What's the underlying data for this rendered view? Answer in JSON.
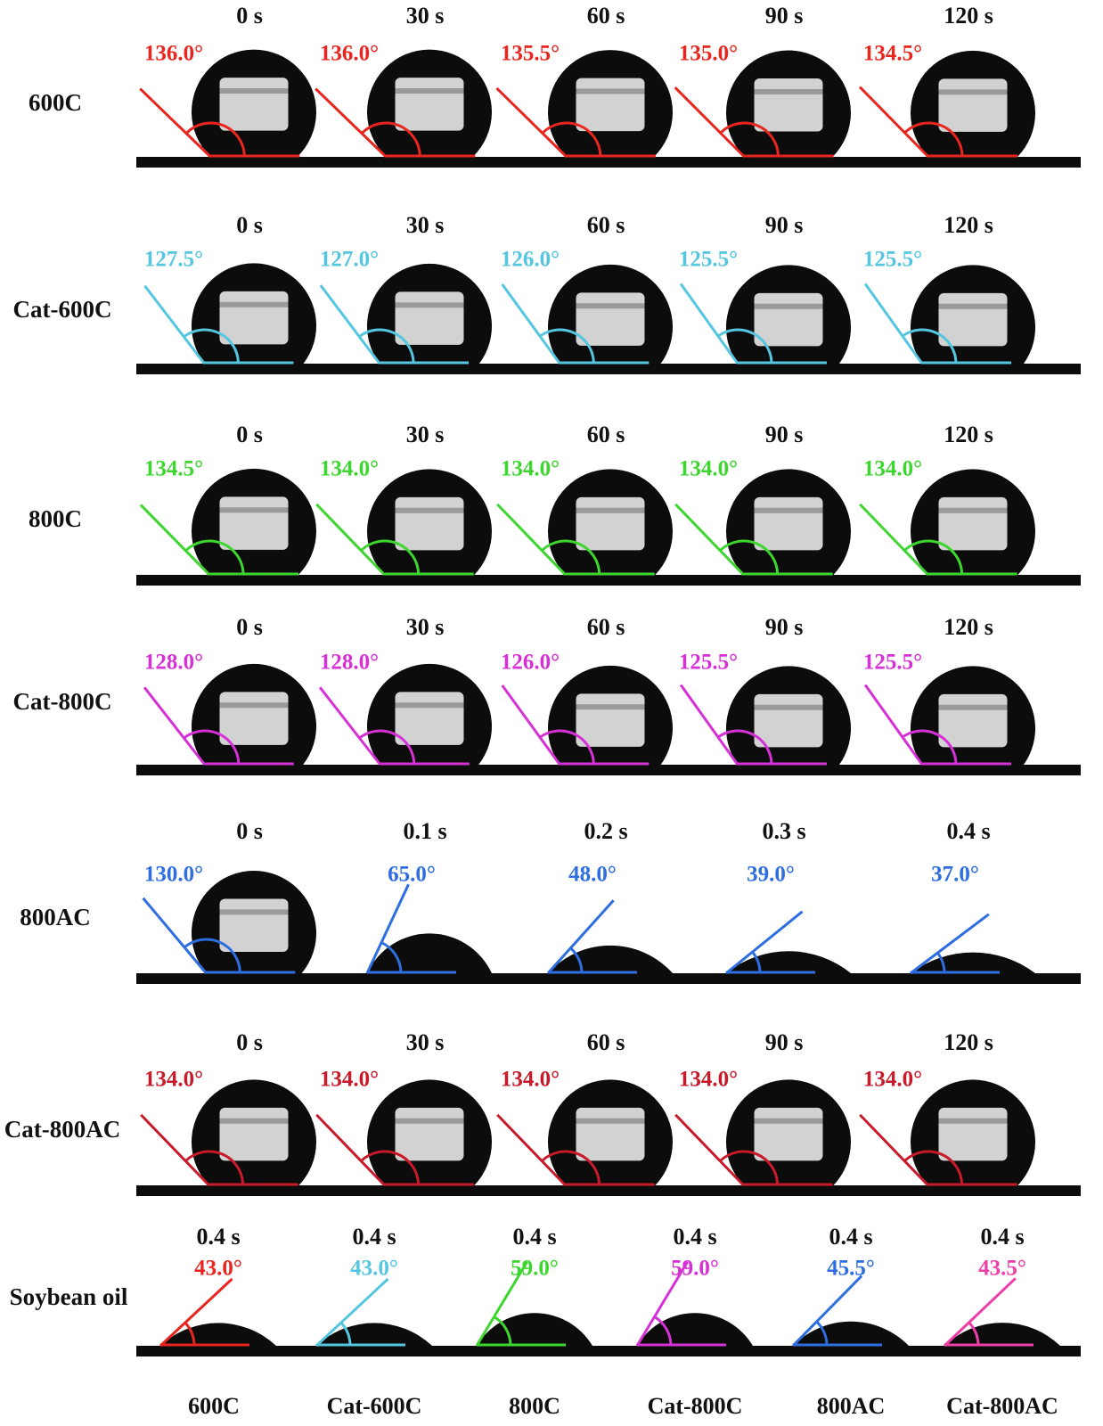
{
  "rows": [
    {
      "label": "600C",
      "color": "#e8261f",
      "times": [
        "0 s",
        "30 s",
        "60 s",
        "90 s",
        "120 s"
      ],
      "angles": [
        "136.0°",
        "136.0°",
        "135.5°",
        "135.0°",
        "134.5°"
      ]
    },
    {
      "label": "Cat-600C",
      "color": "#55c6e0",
      "times": [
        "0 s",
        "30 s",
        "60 s",
        "90 s",
        "120 s"
      ],
      "angles": [
        "127.5°",
        "127.0°",
        "126.0°",
        "125.5°",
        "125.5°"
      ]
    },
    {
      "label": "800C",
      "color": "#3dd62f",
      "times": [
        "0 s",
        "30 s",
        "60 s",
        "90 s",
        "120 s"
      ],
      "angles": [
        "134.5°",
        "134.0°",
        "134.0°",
        "134.0°",
        "134.0°"
      ]
    },
    {
      "label": "Cat-800C",
      "color": "#d631d6",
      "times": [
        "0 s",
        "30 s",
        "60 s",
        "90 s",
        "120 s"
      ],
      "angles": [
        "128.0°",
        "128.0°",
        "126.0°",
        "125.5°",
        "125.5°"
      ]
    },
    {
      "label": "800AC",
      "color": "#2f6ee0",
      "times": [
        "0 s",
        "0.1 s",
        "0.2 s",
        "0.3 s",
        "0.4 s"
      ],
      "angles": [
        "130.0°",
        "65.0°",
        "48.0°",
        "39.0°",
        "37.0°"
      ]
    },
    {
      "label": "Cat-800AC",
      "color": "#c81a2a",
      "times": [
        "0 s",
        "30 s",
        "60 s",
        "90 s",
        "120 s"
      ],
      "angles": [
        "134.0°",
        "134.0°",
        "134.0°",
        "134.0°",
        "134.0°"
      ]
    }
  ],
  "oil": {
    "label": "Soybean oil",
    "items": [
      {
        "time": "0.4 s",
        "angle": "43.0°",
        "sample": "600C",
        "color": "#e8261f"
      },
      {
        "time": "0.4 s",
        "angle": "43.0°",
        "sample": "Cat-600C",
        "color": "#55c6e0"
      },
      {
        "time": "0.4 s",
        "angle": "59.0°",
        "sample": "800C",
        "color": "#3dd62f"
      },
      {
        "time": "0.4 s",
        "angle": "59.0°",
        "sample": "Cat-800C",
        "color": "#d631d6"
      },
      {
        "time": "0.4 s",
        "angle": "45.5°",
        "sample": "800AC",
        "color": "#2f6ee0"
      },
      {
        "time": "0.4 s",
        "angle": "43.5°",
        "sample": "Cat-800AC",
        "color": "#ee3fa8"
      }
    ]
  }
}
